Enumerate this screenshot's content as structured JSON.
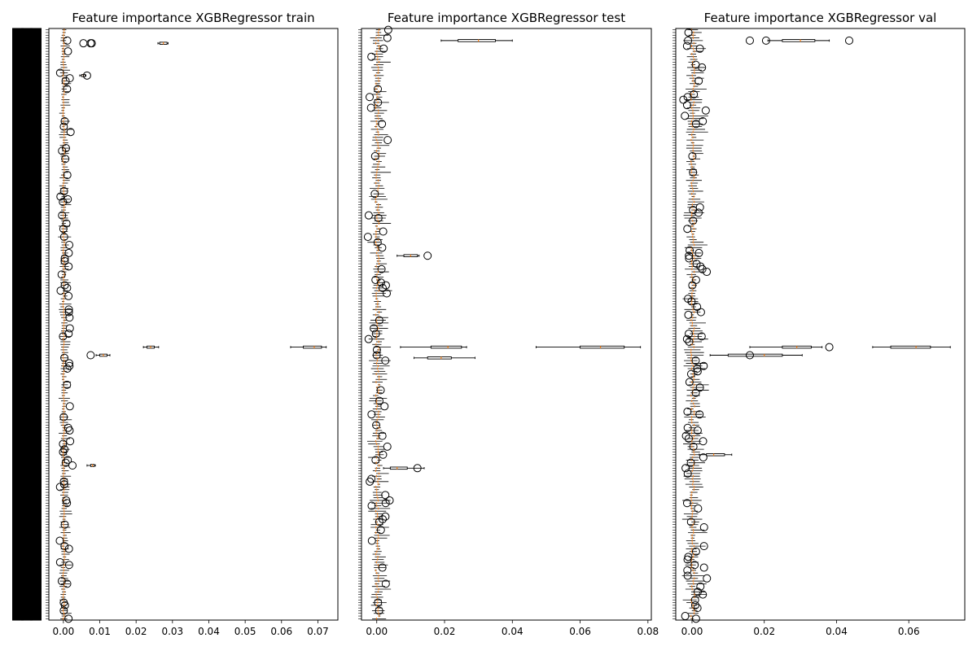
{
  "chart_data": [
    {
      "type": "box",
      "orientation": "horizontal",
      "title": "Feature importance XGBRegressor train",
      "xlim": [
        -0.004,
        0.0755
      ],
      "xticks": [
        0.0,
        0.01,
        0.02,
        0.03,
        0.04,
        0.05,
        0.06,
        0.07
      ],
      "xtick_labels": [
        "0.00",
        "0.01",
        "0.02",
        "0.03",
        "0.04",
        "0.05",
        "0.06",
        "0.07"
      ],
      "ytick_labels_dense": true,
      "n_features_approx": 220,
      "highlights": [
        {
          "row": 5,
          "q1": 0.0265,
          "median": 0.0275,
          "q3": 0.0285,
          "whisker_low": 0.026,
          "whisker_high": 0.0288,
          "outliers": [
            0.0055,
            0.0075,
            0.0078
          ]
        },
        {
          "row": 17,
          "q1": 0.005,
          "median": 0.0055,
          "q3": 0.006,
          "whisker_low": 0.0045,
          "whisker_high": 0.0062,
          "outliers": [
            0.0065
          ]
        },
        {
          "row": 118,
          "q1": 0.066,
          "median": 0.069,
          "q3": 0.071,
          "whisker_low": 0.0625,
          "whisker_high": 0.0723,
          "outliers": []
        },
        {
          "row": 118,
          "q1": 0.023,
          "median": 0.024,
          "q3": 0.025,
          "whisker_low": 0.022,
          "whisker_high": 0.0262,
          "outliers": []
        },
        {
          "row": 121,
          "q1": 0.01,
          "median": 0.011,
          "q3": 0.012,
          "whisker_low": 0.009,
          "whisker_high": 0.0128,
          "outliers": [
            0.0075
          ]
        },
        {
          "row": 162,
          "q1": 0.0075,
          "median": 0.008,
          "q3": 0.0085,
          "whisker_low": 0.0065,
          "whisker_high": 0.0088,
          "outliers": [
            0.0025
          ]
        }
      ]
    },
    {
      "type": "box",
      "orientation": "horizontal",
      "title": "Feature importance XGBRegressor test",
      "xlim": [
        -0.0045,
        0.081
      ],
      "xticks": [
        0.0,
        0.02,
        0.04,
        0.06,
        0.08
      ],
      "xtick_labels": [
        "0.00",
        "0.02",
        "0.04",
        "0.06",
        "0.08"
      ],
      "ytick_labels_dense": true,
      "n_features_approx": 220,
      "highlights": [
        {
          "row": 4,
          "q1": 0.024,
          "median": 0.03,
          "q3": 0.035,
          "whisker_low": 0.019,
          "whisker_high": 0.04,
          "outliers": []
        },
        {
          "row": 118,
          "q1": 0.06,
          "median": 0.066,
          "q3": 0.073,
          "whisker_low": 0.047,
          "whisker_high": 0.0778,
          "outliers": []
        },
        {
          "row": 118,
          "q1": 0.016,
          "median": 0.021,
          "q3": 0.025,
          "whisker_low": 0.007,
          "whisker_high": 0.0265,
          "outliers": []
        },
        {
          "row": 122,
          "q1": 0.015,
          "median": 0.019,
          "q3": 0.022,
          "whisker_low": 0.011,
          "whisker_high": 0.029,
          "outliers": []
        },
        {
          "row": 84,
          "q1": 0.008,
          "median": 0.01,
          "q3": 0.012,
          "whisker_low": 0.006,
          "whisker_high": 0.0125,
          "outliers": [
            0.015
          ]
        },
        {
          "row": 163,
          "q1": 0.004,
          "median": 0.006,
          "q3": 0.009,
          "whisker_low": 0.002,
          "whisker_high": 0.014,
          "outliers": [
            0.012
          ]
        }
      ]
    },
    {
      "type": "box",
      "orientation": "horizontal",
      "title": "Feature importance XGBRegressor val",
      "xlim": [
        -0.0045,
        0.0755
      ],
      "xticks": [
        0.0,
        0.02,
        0.04,
        0.06
      ],
      "xtick_labels": [
        "0.00",
        "0.02",
        "0.04",
        "0.06"
      ],
      "ytick_labels_dense": true,
      "n_features_approx": 220,
      "highlights": [
        {
          "row": 4,
          "q1": 0.025,
          "median": 0.03,
          "q3": 0.034,
          "whisker_low": 0.021,
          "whisker_high": 0.038,
          "outliers": [
            0.016,
            0.0205,
            0.0435
          ]
        },
        {
          "row": 118,
          "q1": 0.055,
          "median": 0.062,
          "q3": 0.066,
          "whisker_low": 0.05,
          "whisker_high": 0.0715,
          "outliers": []
        },
        {
          "row": 118,
          "q1": 0.025,
          "median": 0.029,
          "q3": 0.033,
          "whisker_low": 0.016,
          "whisker_high": 0.036,
          "outliers": [
            0.038
          ]
        },
        {
          "row": 121,
          "q1": 0.01,
          "median": 0.02,
          "q3": 0.025,
          "whisker_low": 0.005,
          "whisker_high": 0.0305,
          "outliers": [
            0.016
          ]
        },
        {
          "row": 158,
          "q1": 0.004,
          "median": 0.006,
          "q3": 0.009,
          "whisker_low": 0.002,
          "whisker_high": 0.011,
          "outliers": []
        }
      ]
    }
  ],
  "colors": {
    "median": "#ff7f0e",
    "box": "#000000",
    "outlier_edge": "#000000"
  }
}
